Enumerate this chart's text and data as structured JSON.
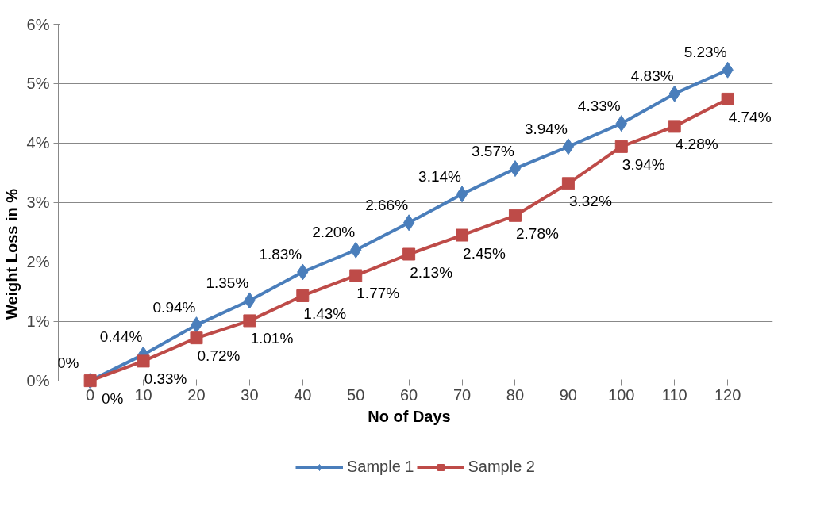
{
  "chart_data": {
    "type": "line",
    "xlabel": "No of Days",
    "ylabel": "Weight Loss in %",
    "categories": [
      "0",
      "10",
      "20",
      "30",
      "40",
      "50",
      "60",
      "70",
      "80",
      "90",
      "100",
      "110",
      "120"
    ],
    "series": [
      {
        "name": "Sample 1",
        "color": "#4a7ebb",
        "marker": "diamond",
        "values": [
          0,
          0.44,
          0.94,
          1.35,
          1.83,
          2.2,
          2.66,
          3.14,
          3.57,
          3.94,
          4.33,
          4.83,
          5.23
        ],
        "value_labels": [
          "0%",
          "0.44%",
          "0.94%",
          "1.35%",
          "1.83%",
          "2.20%",
          "2.66%",
          "3.14%",
          "3.57%",
          "3.94%",
          "4.33%",
          "4.83%",
          "5.23%"
        ]
      },
      {
        "name": "Sample 2",
        "color": "#be4b48",
        "marker": "square",
        "values": [
          0,
          0.33,
          0.72,
          1.01,
          1.43,
          1.77,
          2.13,
          2.45,
          2.78,
          3.32,
          3.94,
          4.28,
          4.74
        ],
        "value_labels": [
          "0%",
          "0.33%",
          "0.72%",
          "1.01%",
          "1.43%",
          "1.77%",
          "2.13%",
          "2.45%",
          "2.78%",
          "3.32%",
          "3.94%",
          "4.28%",
          "4.74%"
        ]
      }
    ],
    "ylim": [
      0,
      6
    ],
    "yticks": [
      {
        "value": 0,
        "label": "0%"
      },
      {
        "value": 1,
        "label": "1%"
      },
      {
        "value": 2,
        "label": "2%"
      },
      {
        "value": 3,
        "label": "3%"
      },
      {
        "value": 4,
        "label": "4%"
      },
      {
        "value": 5,
        "label": "5%"
      },
      {
        "value": 6,
        "label": "6%"
      }
    ],
    "grid": "y",
    "legend": "bottom",
    "line_style": "solid"
  }
}
